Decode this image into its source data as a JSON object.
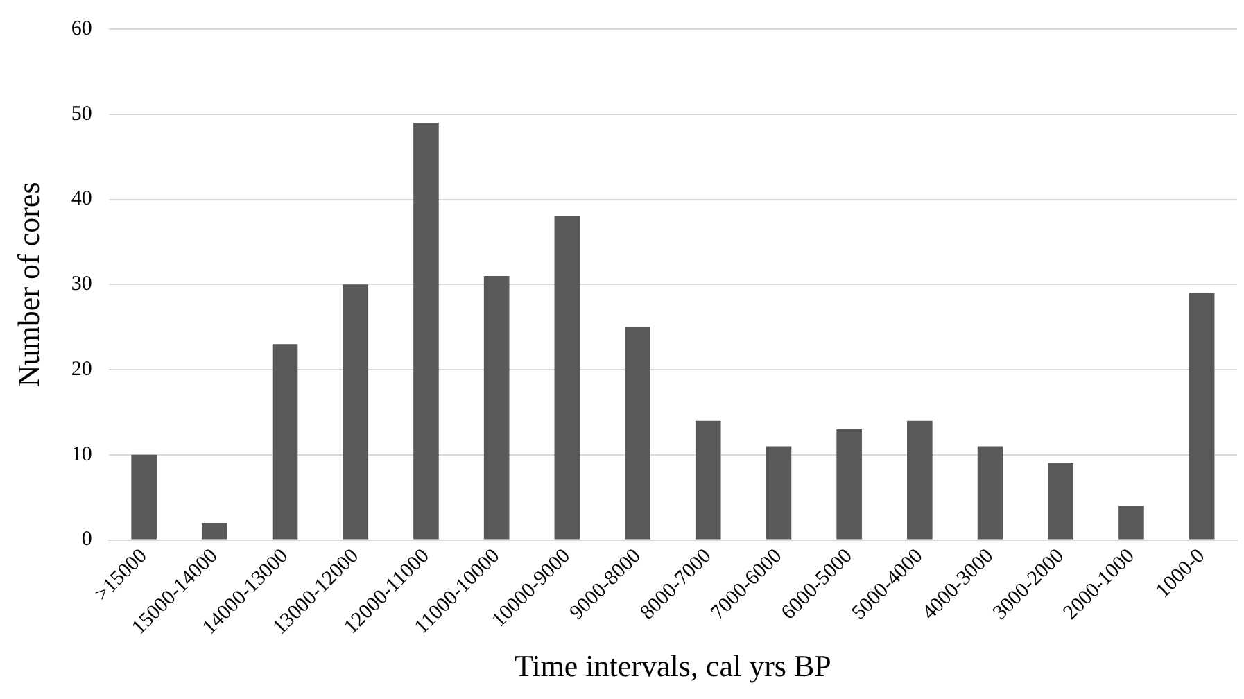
{
  "chart_data": {
    "type": "bar",
    "xlabel": "Time intervals, cal yrs BP",
    "ylabel": "Number of cores",
    "categories": [
      ">15000",
      "15000-14000",
      "14000-13000",
      "13000-12000",
      "12000-11000",
      "11000-10000",
      "10000-9000",
      "9000-8000",
      "8000-7000",
      "7000-6000",
      "6000-5000",
      "5000-4000",
      "4000-3000",
      "3000-2000",
      "2000-1000",
      "1000-0"
    ],
    "values": [
      10,
      2,
      23,
      30,
      49,
      31,
      38,
      25,
      14,
      11,
      13,
      14,
      11,
      9,
      4,
      29
    ],
    "color": "#595959",
    "ylim": [
      0,
      60
    ],
    "yticks": [
      0,
      10,
      20,
      30,
      40,
      50,
      60
    ],
    "grid": "y",
    "legend": false
  }
}
